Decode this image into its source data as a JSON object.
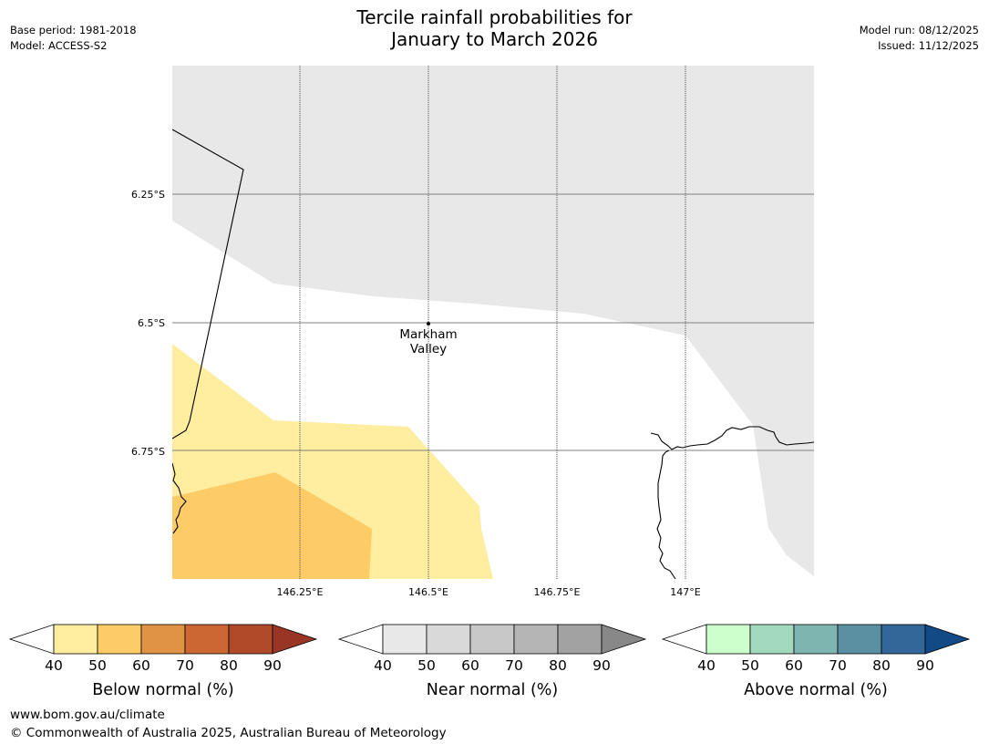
{
  "header": {
    "title_line1": "Tercile rainfall probabilities for",
    "title_line2": "January to March 2026",
    "base_period": "Base period: 1981-2018",
    "model": "Model: ACCESS-S2",
    "model_run": "Model run: 08/12/2025",
    "issued": "Issued: 11/12/2025"
  },
  "map": {
    "lat_labels": [
      "6.25°S",
      "6.5°S",
      "6.75°S"
    ],
    "lon_labels": [
      "146.25°E",
      "146.5°E",
      "146.75°E",
      "147°E"
    ],
    "place": {
      "line1": "Markham",
      "line2": "Valley"
    },
    "colors": {
      "near_40": "#e8e8e8",
      "below_40": "#ffeda0",
      "below_50": "#fecc66",
      "coast": "#000000",
      "grid": "#808080"
    }
  },
  "colorbars": [
    {
      "label": "Below normal (%)",
      "ticks": [
        "40",
        "50",
        "60",
        "70",
        "80",
        "90"
      ],
      "colors": [
        "#ffeda0",
        "#fecc66",
        "#e09245",
        "#cc6633",
        "#b04a28",
        "#983524"
      ]
    },
    {
      "label": "Near normal (%)",
      "ticks": [
        "40",
        "50",
        "60",
        "70",
        "80",
        "90"
      ],
      "colors": [
        "#e8e8e8",
        "#d9d9d9",
        "#c8c8c8",
        "#b5b5b5",
        "#a2a2a2",
        "#888888"
      ]
    },
    {
      "label": "Above normal (%)",
      "ticks": [
        "40",
        "50",
        "60",
        "70",
        "80",
        "90"
      ],
      "colors": [
        "#ccffcc",
        "#a3d9bd",
        "#7fb5b0",
        "#5a90a2",
        "#336699",
        "#124a85"
      ]
    }
  ],
  "footer": {
    "url": "www.bom.gov.au/climate",
    "copyright": "© Commonwealth of Australia 2025, Australian Bureau of Meteorology"
  }
}
